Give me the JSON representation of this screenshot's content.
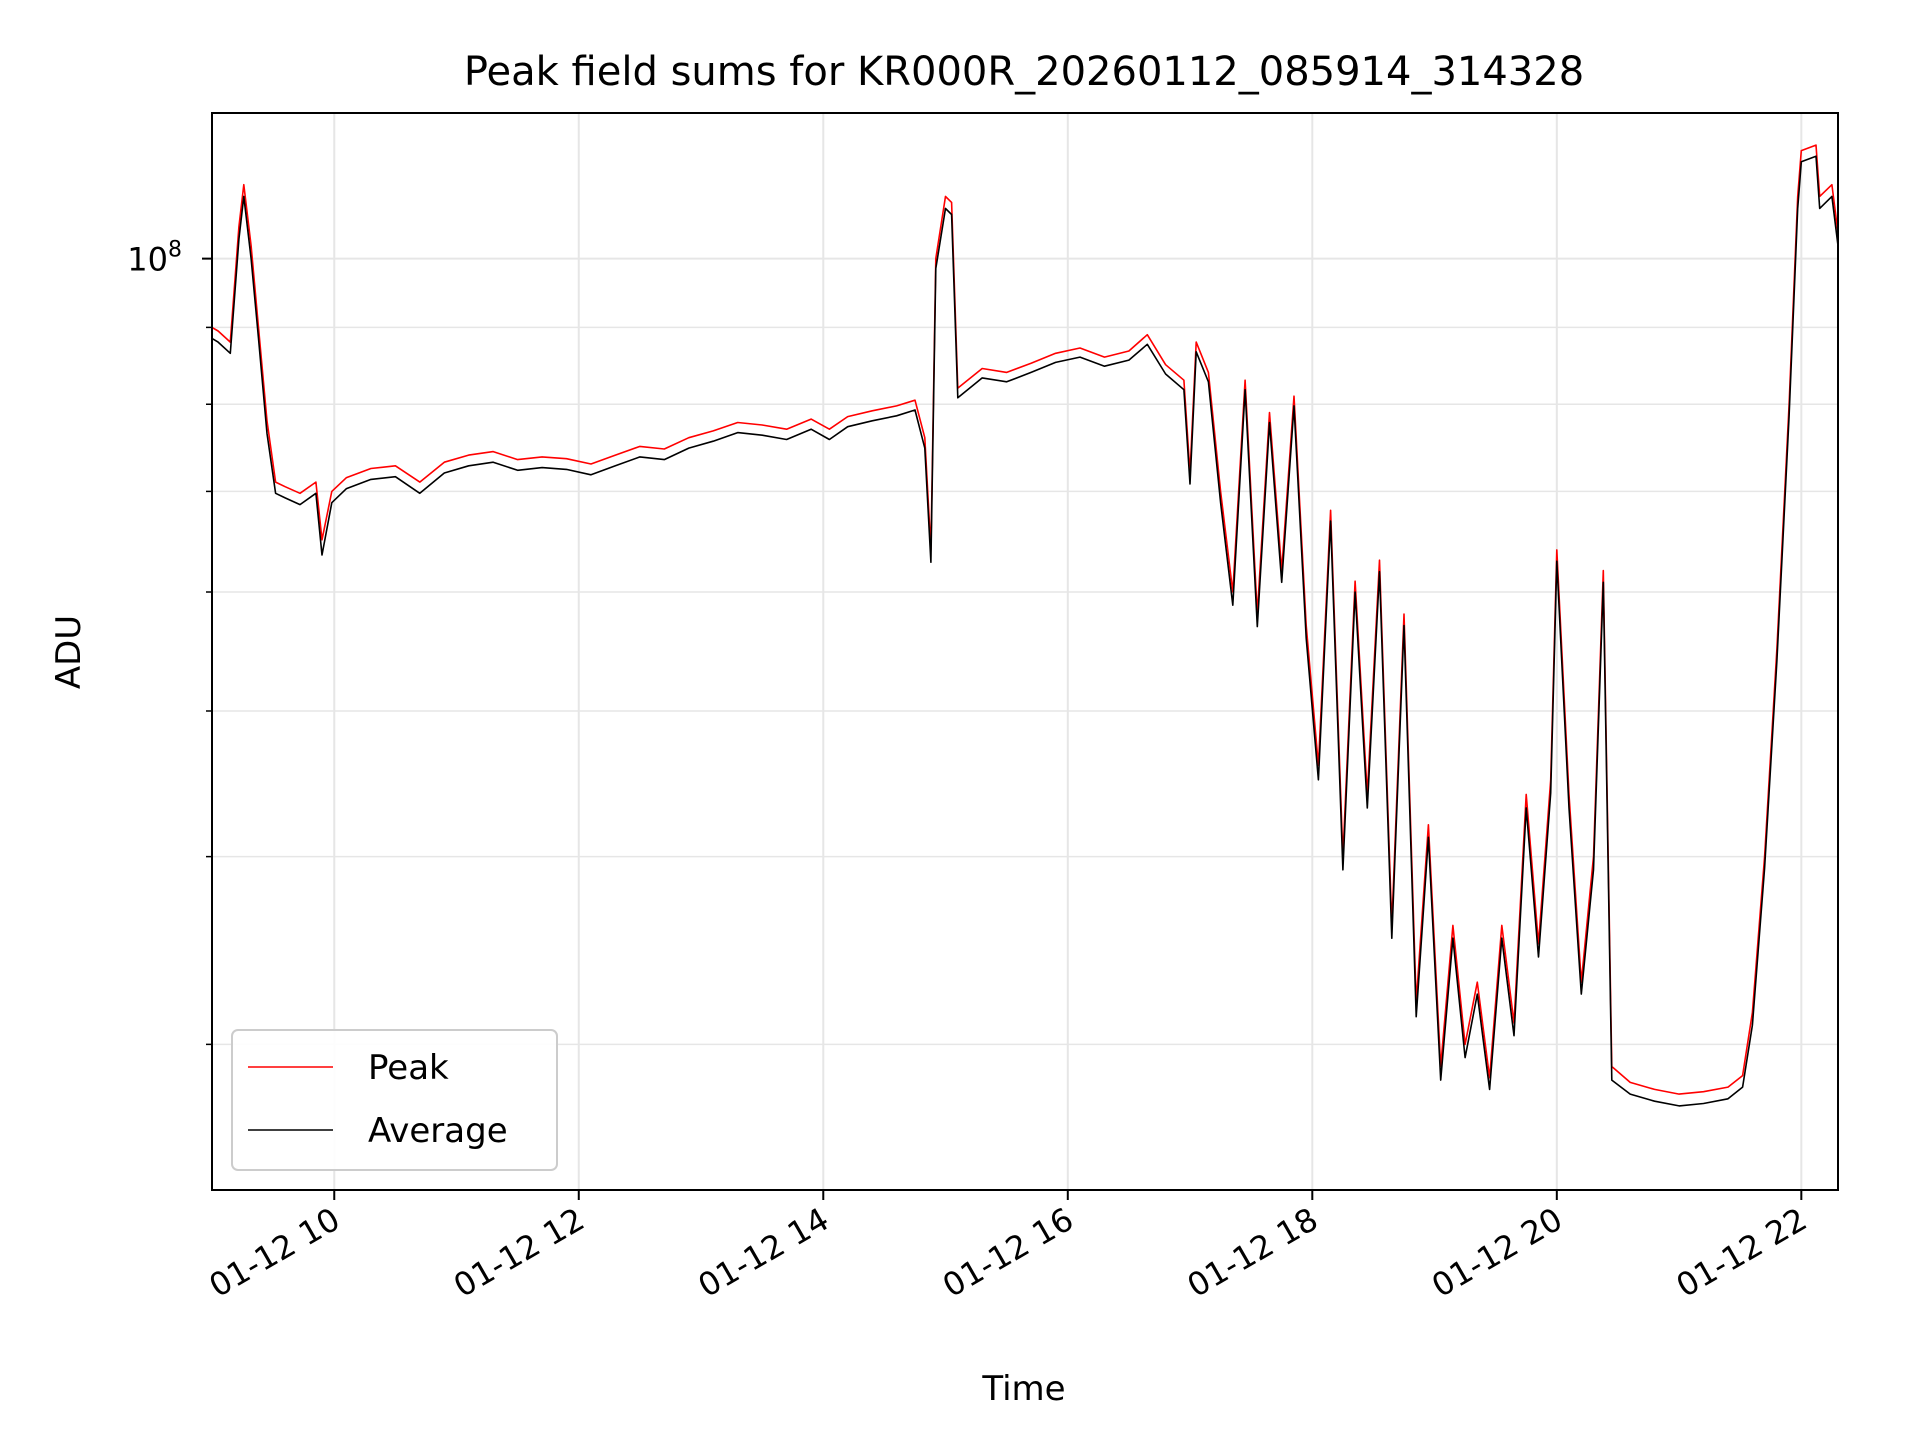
{
  "chart_data": {
    "type": "line",
    "title": "Peak field sums for KR000R_20260112_085914_314328",
    "xlabel": "Time",
    "ylabel": "ADU",
    "yscale": "log",
    "grid": true,
    "legend_position": "lower-left",
    "x_tick_labels": [
      "01-12 10",
      "01-12 12",
      "01-12 14",
      "01-12 16",
      "01-12 18",
      "01-12 20",
      "01-12 22"
    ],
    "x_tick_hours": [
      10,
      12,
      14,
      16,
      18,
      20,
      22
    ],
    "xlim_hours": [
      9.0,
      22.3
    ],
    "ylim": [
      24000000,
      125000000
    ],
    "y_major_tick": {
      "value": 100000000,
      "label_base": "10",
      "label_exp": "8"
    },
    "y_minor_ticks": [
      30000000,
      40000000,
      50000000,
      60000000,
      70000000,
      80000000,
      90000000
    ],
    "series": [
      {
        "name": "Peak",
        "color": "#ff0000",
        "points": [
          [
            9.0,
            90000000
          ],
          [
            9.05,
            89500000
          ],
          [
            9.15,
            88000000
          ],
          [
            9.22,
            105000000
          ],
          [
            9.26,
            112000000
          ],
          [
            9.32,
            102000000
          ],
          [
            9.38,
            90000000
          ],
          [
            9.45,
            78000000
          ],
          [
            9.52,
            71000000
          ],
          [
            9.6,
            70500000
          ],
          [
            9.72,
            69800000
          ],
          [
            9.85,
            71000000
          ],
          [
            9.9,
            65000000
          ],
          [
            9.98,
            70000000
          ],
          [
            10.1,
            71500000
          ],
          [
            10.3,
            72500000
          ],
          [
            10.5,
            72800000
          ],
          [
            10.7,
            71000000
          ],
          [
            10.9,
            73200000
          ],
          [
            11.1,
            74000000
          ],
          [
            11.3,
            74400000
          ],
          [
            11.5,
            73500000
          ],
          [
            11.7,
            73800000
          ],
          [
            11.9,
            73600000
          ],
          [
            12.1,
            73000000
          ],
          [
            12.3,
            74000000
          ],
          [
            12.5,
            75000000
          ],
          [
            12.7,
            74700000
          ],
          [
            12.9,
            76000000
          ],
          [
            13.1,
            76800000
          ],
          [
            13.3,
            77800000
          ],
          [
            13.5,
            77500000
          ],
          [
            13.7,
            77000000
          ],
          [
            13.9,
            78200000
          ],
          [
            14.05,
            77000000
          ],
          [
            14.2,
            78500000
          ],
          [
            14.4,
            79200000
          ],
          [
            14.6,
            79800000
          ],
          [
            14.75,
            80500000
          ],
          [
            14.83,
            76000000
          ],
          [
            14.88,
            64000000
          ],
          [
            14.92,
            100000000
          ],
          [
            15.0,
            110000000
          ],
          [
            15.05,
            109000000
          ],
          [
            15.1,
            82000000
          ],
          [
            15.3,
            84500000
          ],
          [
            15.5,
            84000000
          ],
          [
            15.7,
            85200000
          ],
          [
            15.9,
            86500000
          ],
          [
            16.1,
            87200000
          ],
          [
            16.3,
            86000000
          ],
          [
            16.5,
            86800000
          ],
          [
            16.65,
            89000000
          ],
          [
            16.8,
            85000000
          ],
          [
            16.95,
            83000000
          ],
          [
            17.0,
            72000000
          ],
          [
            17.05,
            88000000
          ],
          [
            17.15,
            84000000
          ],
          [
            17.25,
            70000000
          ],
          [
            17.35,
            60000000
          ],
          [
            17.45,
            83000000
          ],
          [
            17.55,
            58000000
          ],
          [
            17.65,
            79000000
          ],
          [
            17.75,
            62000000
          ],
          [
            17.85,
            81000000
          ],
          [
            17.95,
            57000000
          ],
          [
            18.05,
            46000000
          ],
          [
            18.15,
            68000000
          ],
          [
            18.25,
            40000000
          ],
          [
            18.35,
            61000000
          ],
          [
            18.45,
            44000000
          ],
          [
            18.55,
            63000000
          ],
          [
            18.65,
            36000000
          ],
          [
            18.75,
            58000000
          ],
          [
            18.85,
            32000000
          ],
          [
            18.95,
            42000000
          ],
          [
            19.05,
            29000000
          ],
          [
            19.15,
            36000000
          ],
          [
            19.25,
            30000000
          ],
          [
            19.35,
            33000000
          ],
          [
            19.45,
            28500000
          ],
          [
            19.55,
            36000000
          ],
          [
            19.65,
            31000000
          ],
          [
            19.75,
            44000000
          ],
          [
            19.85,
            35000000
          ],
          [
            19.95,
            45000000
          ],
          [
            20.0,
            64000000
          ],
          [
            20.1,
            44000000
          ],
          [
            20.2,
            33000000
          ],
          [
            20.3,
            40000000
          ],
          [
            20.38,
            62000000
          ],
          [
            20.45,
            29000000
          ],
          [
            20.6,
            28300000
          ],
          [
            20.8,
            28000000
          ],
          [
            21.0,
            27800000
          ],
          [
            21.2,
            27900000
          ],
          [
            21.4,
            28100000
          ],
          [
            21.52,
            28600000
          ],
          [
            21.6,
            31500000
          ],
          [
            21.7,
            40000000
          ],
          [
            21.8,
            55000000
          ],
          [
            21.9,
            80000000
          ],
          [
            21.97,
            110000000
          ],
          [
            22.0,
            118000000
          ],
          [
            22.12,
            119000000
          ],
          [
            22.15,
            110000000
          ],
          [
            22.25,
            112000000
          ],
          [
            22.3,
            104000000
          ]
        ]
      },
      {
        "name": "Average",
        "color": "#000000",
        "points": [
          [
            9.0,
            88500000
          ],
          [
            9.05,
            88000000
          ],
          [
            9.15,
            86500000
          ],
          [
            9.22,
            103000000
          ],
          [
            9.26,
            110000000
          ],
          [
            9.32,
            100000000
          ],
          [
            9.38,
            88500000
          ],
          [
            9.45,
            76500000
          ],
          [
            9.52,
            69800000
          ],
          [
            9.6,
            69300000
          ],
          [
            9.72,
            68600000
          ],
          [
            9.85,
            69800000
          ],
          [
            9.9,
            63500000
          ],
          [
            9.98,
            68800000
          ],
          [
            10.1,
            70300000
          ],
          [
            10.3,
            71300000
          ],
          [
            10.5,
            71600000
          ],
          [
            10.7,
            69800000
          ],
          [
            10.9,
            72000000
          ],
          [
            11.1,
            72800000
          ],
          [
            11.3,
            73200000
          ],
          [
            11.5,
            72300000
          ],
          [
            11.7,
            72600000
          ],
          [
            11.9,
            72400000
          ],
          [
            12.1,
            71800000
          ],
          [
            12.3,
            72800000
          ],
          [
            12.5,
            73800000
          ],
          [
            12.7,
            73500000
          ],
          [
            12.9,
            74800000
          ],
          [
            13.1,
            75600000
          ],
          [
            13.3,
            76600000
          ],
          [
            13.5,
            76300000
          ],
          [
            13.7,
            75800000
          ],
          [
            13.9,
            77000000
          ],
          [
            14.05,
            75800000
          ],
          [
            14.2,
            77300000
          ],
          [
            14.4,
            78000000
          ],
          [
            14.6,
            78600000
          ],
          [
            14.75,
            79300000
          ],
          [
            14.83,
            74800000
          ],
          [
            14.88,
            62800000
          ],
          [
            14.92,
            98500000
          ],
          [
            15.0,
            108000000
          ],
          [
            15.05,
            107000000
          ],
          [
            15.1,
            80800000
          ],
          [
            15.3,
            83300000
          ],
          [
            15.5,
            82800000
          ],
          [
            15.7,
            84000000
          ],
          [
            15.9,
            85300000
          ],
          [
            16.1,
            86000000
          ],
          [
            16.3,
            84800000
          ],
          [
            16.5,
            85600000
          ],
          [
            16.65,
            87700000
          ],
          [
            16.8,
            83800000
          ],
          [
            16.95,
            81800000
          ],
          [
            17.0,
            70800000
          ],
          [
            17.05,
            86700000
          ],
          [
            17.15,
            82800000
          ],
          [
            17.25,
            68800000
          ],
          [
            17.35,
            58800000
          ],
          [
            17.45,
            81800000
          ],
          [
            17.55,
            56900000
          ],
          [
            17.65,
            77800000
          ],
          [
            17.75,
            60900000
          ],
          [
            17.85,
            79800000
          ],
          [
            17.95,
            55900000
          ],
          [
            18.05,
            45000000
          ],
          [
            18.15,
            66900000
          ],
          [
            18.25,
            39200000
          ],
          [
            18.35,
            60000000
          ],
          [
            18.45,
            43100000
          ],
          [
            18.55,
            61900000
          ],
          [
            18.65,
            35300000
          ],
          [
            18.75,
            57000000
          ],
          [
            18.85,
            31300000
          ],
          [
            18.95,
            41200000
          ],
          [
            19.05,
            28400000
          ],
          [
            19.15,
            35300000
          ],
          [
            19.25,
            29400000
          ],
          [
            19.35,
            32400000
          ],
          [
            19.45,
            28000000
          ],
          [
            19.55,
            35300000
          ],
          [
            19.65,
            30400000
          ],
          [
            19.75,
            43100000
          ],
          [
            19.85,
            34300000
          ],
          [
            19.95,
            44100000
          ],
          [
            20.0,
            62900000
          ],
          [
            20.1,
            43100000
          ],
          [
            20.2,
            32400000
          ],
          [
            20.3,
            39200000
          ],
          [
            20.38,
            60900000
          ],
          [
            20.45,
            28400000
          ],
          [
            20.6,
            27800000
          ],
          [
            20.8,
            27500000
          ],
          [
            21.0,
            27300000
          ],
          [
            21.2,
            27400000
          ],
          [
            21.4,
            27600000
          ],
          [
            21.52,
            28100000
          ],
          [
            21.6,
            30900000
          ],
          [
            21.7,
            39300000
          ],
          [
            21.8,
            54000000
          ],
          [
            21.9,
            78600000
          ],
          [
            21.97,
            108000000
          ],
          [
            22.0,
            116000000
          ],
          [
            22.12,
            117000000
          ],
          [
            22.15,
            108000000
          ],
          [
            22.25,
            110000000
          ],
          [
            22.3,
            102000000
          ]
        ]
      }
    ]
  }
}
